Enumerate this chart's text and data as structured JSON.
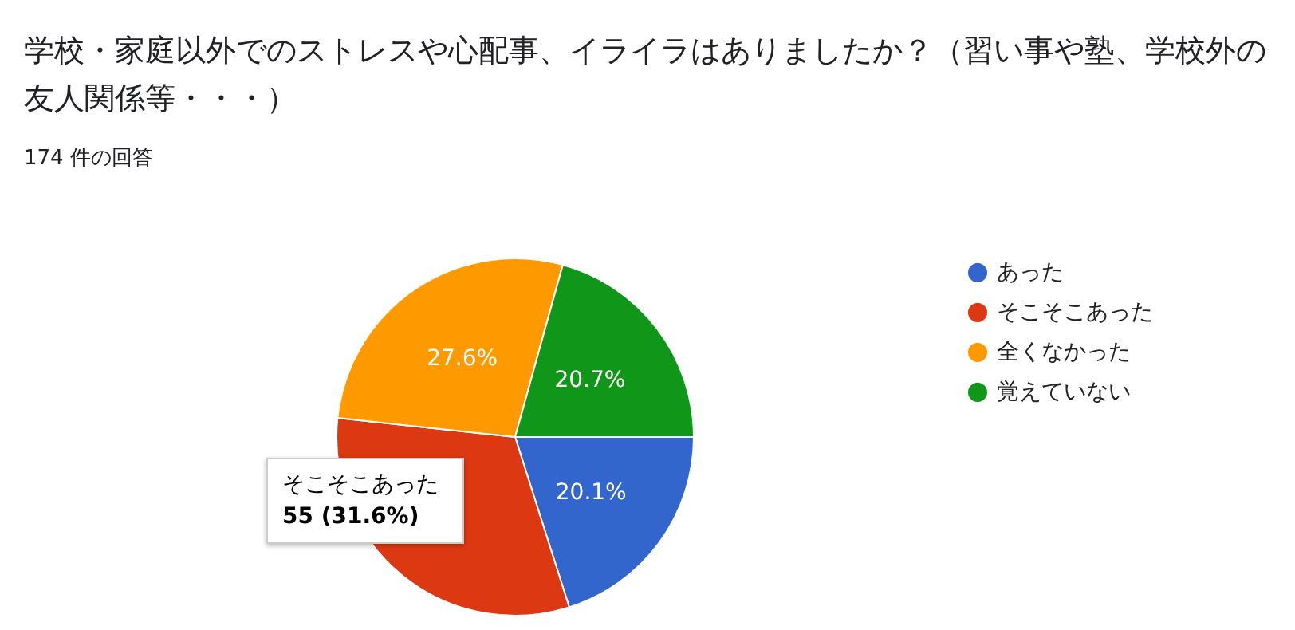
{
  "chart_data": {
    "type": "pie",
    "title": "学校・家庭以外でのストレスや心配事、イライラはありましたか？（習い事や塾、学校外の友人関係等・・・）",
    "subtitle": "174 件の回答",
    "categories": [
      "あった",
      "そこそこあった",
      "全くなかった",
      "覚えていない"
    ],
    "values": [
      20.1,
      31.6,
      27.6,
      20.7
    ],
    "colors": [
      "#3366cc",
      "#dc3912",
      "#ff9900",
      "#109618"
    ],
    "value_labels": [
      "20.1%",
      null,
      "27.6%",
      "20.7%"
    ],
    "annotations": [
      "そこそこあった",
      "55 (31.6%)"
    ],
    "legend": "right"
  }
}
